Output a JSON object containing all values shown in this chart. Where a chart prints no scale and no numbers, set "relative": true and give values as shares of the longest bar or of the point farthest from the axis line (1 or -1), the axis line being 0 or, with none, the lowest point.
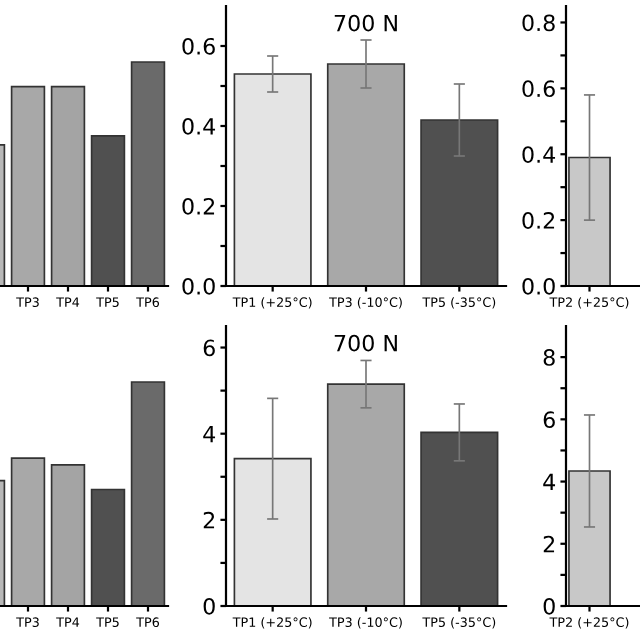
{
  "chart_data": [
    {
      "type": "bar",
      "relative": true,
      "tick_labels": "x",
      "categories": [
        null,
        "TP3",
        "TP4",
        "TP5",
        "TP6"
      ],
      "values": [
        0.63,
        0.89,
        0.89,
        0.67,
        1
      ],
      "colors": [
        "#b8b8b8",
        "#a8a8a8",
        "#a4a4a4",
        "#505050",
        "#6a6a6a"
      ]
    },
    {
      "type": "bar",
      "title": "700 N",
      "categories": [
        "TP1 (+25°C)",
        "TP3 (-10°C)",
        "TP5 (-35°C)"
      ],
      "values": [
        0.53,
        0.555,
        0.415
      ],
      "errors": [
        0.045,
        0.06,
        0.09
      ],
      "colors": [
        "#e4e4e4",
        "#a8a8a8",
        "#505050"
      ],
      "ylim": [
        0,
        0.7
      ],
      "yticks": [
        {
          "value": 0,
          "label": "0.0"
        },
        {
          "value": 0.1,
          "label": null
        },
        0.2,
        {
          "value": 0.3,
          "label": null
        },
        0.4,
        {
          "value": 0.5,
          "label": null
        },
        0.6
      ]
    },
    {
      "type": "bar",
      "categories": [
        "TP2 (+25°C)"
      ],
      "values": [
        0.39
      ],
      "errors": [
        0.19
      ],
      "colors": [
        "#c8c8c8"
      ],
      "ylim": [
        0,
        0.85
      ],
      "yticks": [
        {
          "value": 0,
          "label": "0.0"
        },
        {
          "value": 0.1,
          "label": null
        },
        0.2,
        {
          "value": 0.3,
          "label": null
        },
        0.4,
        {
          "value": 0.5,
          "label": null
        },
        0.6,
        {
          "value": 0.7,
          "label": null
        },
        0.8
      ]
    },
    {
      "type": "bar",
      "relative": true,
      "tick_labels": "x",
      "categories": [
        null,
        "TP3",
        "TP4",
        "TP5",
        "TP6"
      ],
      "values": [
        0.56,
        0.66,
        0.63,
        0.52,
        1
      ],
      "colors": [
        "#b8b8b8",
        "#a8a8a8",
        "#a4a4a4",
        "#505050",
        "#6a6a6a"
      ]
    },
    {
      "type": "bar",
      "title": "700 N",
      "categories": [
        "TP1 (+25°C)",
        "TP3 (-10°C)",
        "TP5 (-35°C)"
      ],
      "values": [
        3.42,
        5.15,
        4.03
      ],
      "errors": [
        1.4,
        0.55,
        0.66
      ],
      "colors": [
        "#e4e4e4",
        "#a8a8a8",
        "#505050"
      ],
      "ylim": [
        0,
        6.5
      ],
      "yticks": [
        0,
        {
          "value": 1,
          "label": null
        },
        2,
        {
          "value": 3,
          "label": null
        },
        4,
        {
          "value": 5,
          "label": null
        },
        6
      ]
    },
    {
      "type": "bar",
      "categories": [
        "TP2 (+25°C)"
      ],
      "values": [
        4.34
      ],
      "errors": [
        1.8
      ],
      "colors": [
        "#c8c8c8"
      ],
      "ylim": [
        0,
        9
      ],
      "yticks": [
        0,
        {
          "value": 1,
          "label": null
        },
        2,
        {
          "value": 3,
          "label": null
        },
        4,
        {
          "value": 5,
          "label": null
        },
        6,
        {
          "value": 7,
          "label": null
        },
        8
      ]
    }
  ]
}
